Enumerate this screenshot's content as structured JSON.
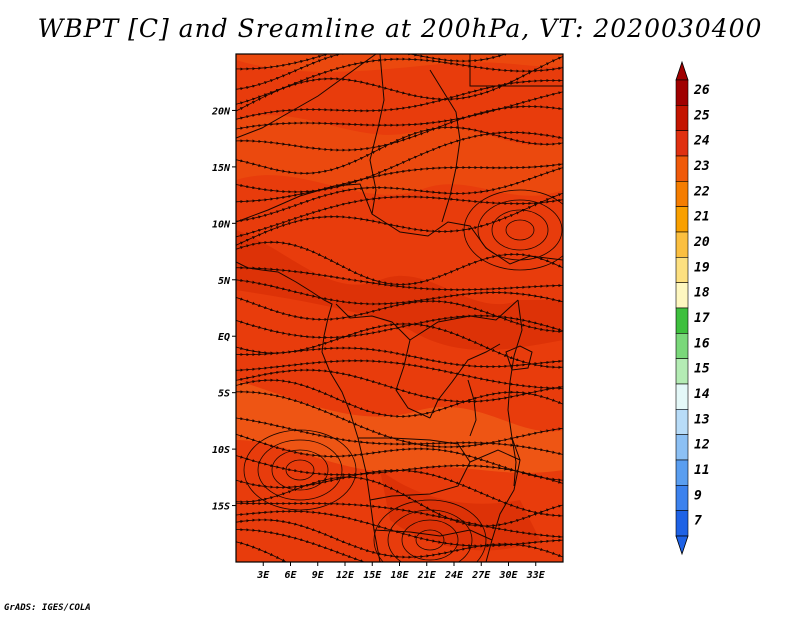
{
  "title": "WBPT [C] and Sreamline at 200hPa, VT: 2020030400",
  "credit": "GrADS: IGES/COLA",
  "map": {
    "lon_range": [
      0,
      36
    ],
    "lat_range": [
      -20,
      25
    ],
    "lon_ticks": [
      {
        "value": 3,
        "label": "3E"
      },
      {
        "value": 6,
        "label": "6E"
      },
      {
        "value": 9,
        "label": "9E"
      },
      {
        "value": 12,
        "label": "12E"
      },
      {
        "value": 15,
        "label": "15E"
      },
      {
        "value": 18,
        "label": "18E"
      },
      {
        "value": 21,
        "label": "21E"
      },
      {
        "value": 24,
        "label": "24E"
      },
      {
        "value": 27,
        "label": "27E"
      },
      {
        "value": 30,
        "label": "30E"
      },
      {
        "value": 33,
        "label": "33E"
      }
    ],
    "lat_ticks": [
      {
        "value": 20,
        "label": "20N"
      },
      {
        "value": 15,
        "label": "15N"
      },
      {
        "value": 10,
        "label": "10N"
      },
      {
        "value": 5,
        "label": "5N"
      },
      {
        "value": 0,
        "label": "EQ"
      },
      {
        "value": -5,
        "label": "5S"
      },
      {
        "value": -10,
        "label": "10S"
      },
      {
        "value": -15,
        "label": "15S"
      }
    ],
    "field_base_color": "#e83c0c",
    "band_colors": [
      "#ec5410",
      "#d42a04",
      "#f26a1c"
    ],
    "streamline_color": "#1a0600"
  },
  "colorbar": {
    "levels": [
      "26",
      "25",
      "24",
      "23",
      "22",
      "21",
      "20",
      "19",
      "18",
      "17",
      "16",
      "15",
      "14",
      "13",
      "12",
      "11",
      "9",
      "7"
    ],
    "colors": [
      "#a00000",
      "#c41400",
      "#e03010",
      "#f05a0a",
      "#f57d00",
      "#f9a000",
      "#fbbf40",
      "#fde080",
      "#fef7c0",
      "#3ec03e",
      "#7ad87a",
      "#b4ecb4",
      "#e4f8f8",
      "#b8dcf8",
      "#8cc0f4",
      "#5a9ef0",
      "#3c82ee",
      "#1e62e6"
    ],
    "top_arrow_color": "#a00000",
    "bottom_arrow_color": "#1e62e6"
  }
}
